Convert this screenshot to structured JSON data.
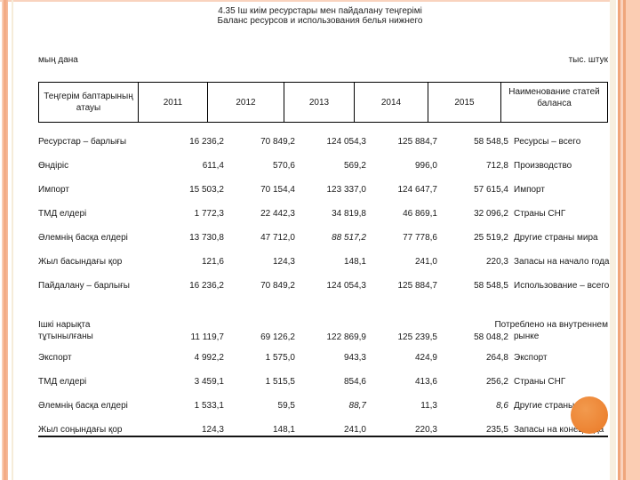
{
  "slide": {
    "title_kk": "4.35 Іш киім ресурстары мен пайдалану теңгерімі",
    "title_ru": "Баланс ресурсов и использования белья нижнего",
    "unit_left": "мың дана",
    "unit_right": "тыс. штук"
  },
  "table": {
    "header": {
      "col_kk": "Теңгерім баптарының атауы",
      "years": [
        "2011",
        "2012",
        "2013",
        "2014",
        "2015"
      ],
      "col_ru": "Наименование статей баланса"
    },
    "rows": [
      {
        "kk": "Ресурстар – барлығы",
        "values": [
          "16 236,2",
          "70 849,2",
          "124 054,3",
          "125 884,7",
          "58 548,5"
        ],
        "ru": "Ресурсы – всего"
      },
      {
        "kk": "Өндіріс",
        "values": [
          "611,4",
          "570,6",
          "569,2",
          "996,0",
          "712,8"
        ],
        "ru": "Производство"
      },
      {
        "kk": "Импорт",
        "values": [
          "15 503,2",
          "70 154,4",
          "123 337,0",
          "124 647,7",
          "57 615,4"
        ],
        "ru": "Импорт"
      },
      {
        "kk": "ТМД елдері",
        "values": [
          "1 772,3",
          "22 442,3",
          "34 819,8",
          "46 869,1",
          "32 096,2"
        ],
        "ru": "Страны СНГ"
      },
      {
        "kk": "Әлемнің басқа елдері",
        "values": [
          "13 730,8",
          "47 712,0",
          "88 517,2",
          "77 778,6",
          "25 519,2"
        ],
        "ru": "Другие страны мира",
        "italics": [
          2
        ]
      },
      {
        "kk": "Жыл басындағы қор",
        "values": [
          "121,6",
          "124,3",
          "148,1",
          "241,0",
          "220,3"
        ],
        "ru": "Запасы на начало года"
      },
      {
        "kk": "Пайдалану – барлығы",
        "values": [
          "16 236,2",
          "70 849,2",
          "124 054,3",
          "125 884,7",
          "58 548,5"
        ],
        "ru": "Использование – всего"
      },
      {
        "kk": "Ішкі нарықта тұтынылғаны",
        "kk_lines": [
          "Ішкі нарықта",
          "тұтынылғаны"
        ],
        "values": [
          "11 119,7",
          "69 126,2",
          "122 869,9",
          "125 239,5",
          "58 048,2"
        ],
        "ru": "Потреблено на внутреннем рынке",
        "ru_lines": [
          "Потреблено на внутреннем",
          "рынке"
        ],
        "tall": true
      },
      {
        "kk": "Экспорт",
        "values": [
          "4 992,2",
          "1 575,0",
          "943,3",
          "424,9",
          "264,8"
        ],
        "ru": "Экспорт",
        "gap": true
      },
      {
        "kk": "ТМД елдері",
        "values": [
          "3 459,1",
          "1 515,5",
          "854,6",
          "413,6",
          "256,2"
        ],
        "ru": "Страны СНГ"
      },
      {
        "kk": "Әлемнің басқа елдері",
        "values": [
          "1 533,1",
          "59,5",
          "88,7",
          "11,3",
          "8,6"
        ],
        "ru": "Другие страны мира",
        "italics": [
          2,
          4
        ]
      },
      {
        "kk": "Жыл соңындағы қор",
        "values": [
          "124,3",
          "148,1",
          "241,0",
          "220,3",
          "235,5"
        ],
        "ru": "Запасы на конец года"
      }
    ]
  },
  "decor": {
    "accent_circle_color": "#ED8533",
    "frame_stripe_color": "#F2A67E",
    "cream_line_color": "#F6ECD9"
  }
}
